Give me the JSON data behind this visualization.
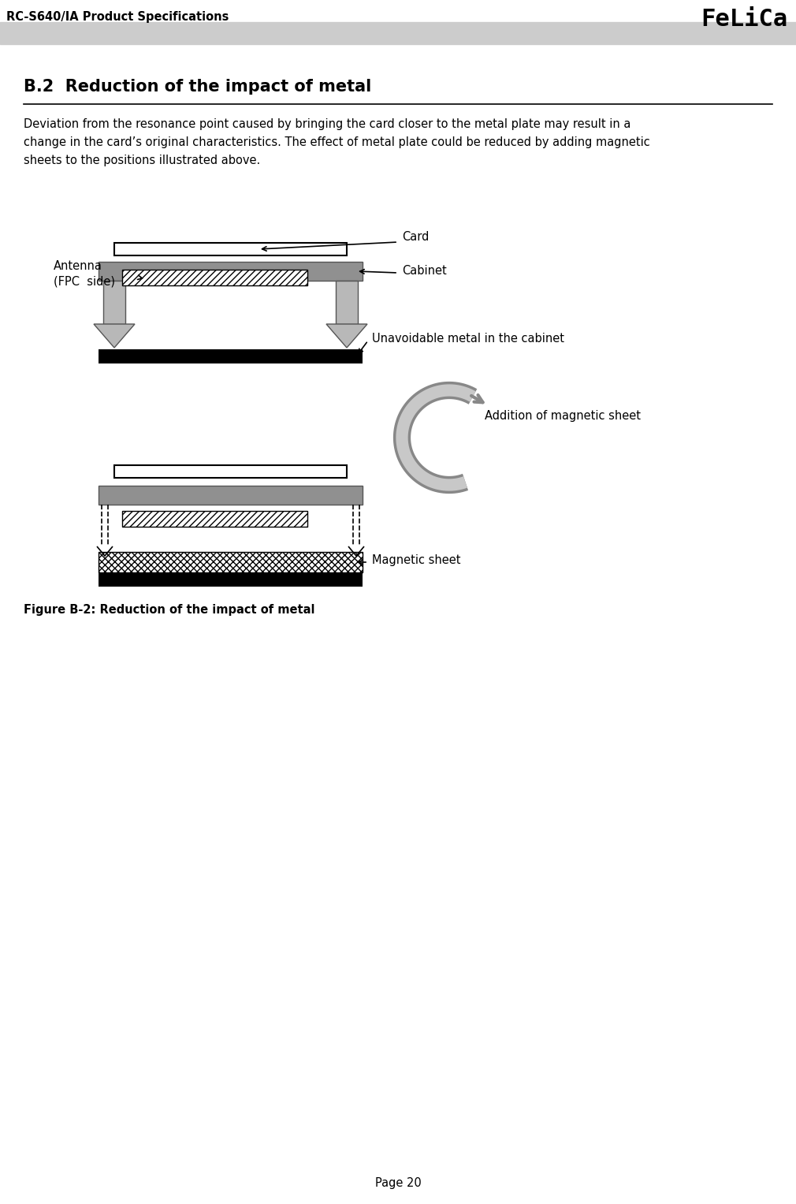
{
  "page_header_left": "RC-S640/IA Product Specifications",
  "page_header_right": "FeLiCa",
  "section_title": "B.2  Reduction of the impact of metal",
  "body_text": "Deviation from the resonance point caused by bringing the card closer to the metal plate may result in a\nchange in the card’s original characteristics. The effect of metal plate could be reduced by adding magnetic\nsheets to the positions illustrated above.",
  "figure_caption": "Figure B-2: Reduction of the impact of metal",
  "page_number": "Page 20",
  "label_antenna": "Antenna\n(FPC  side)",
  "label_card": "Card",
  "label_cabinet": "Cabinet",
  "label_metal": "Unavoidable metal in the cabinet",
  "label_addition": "Addition of magnetic sheet",
  "label_magnetic": "Magnetic sheet",
  "bg_color": "#ffffff",
  "header_bar_color": "#cccccc",
  "dark_color": "#000000",
  "gray_color": "#909090",
  "light_gray": "#c8c8c8",
  "arrow_gray": "#b0b0b0"
}
